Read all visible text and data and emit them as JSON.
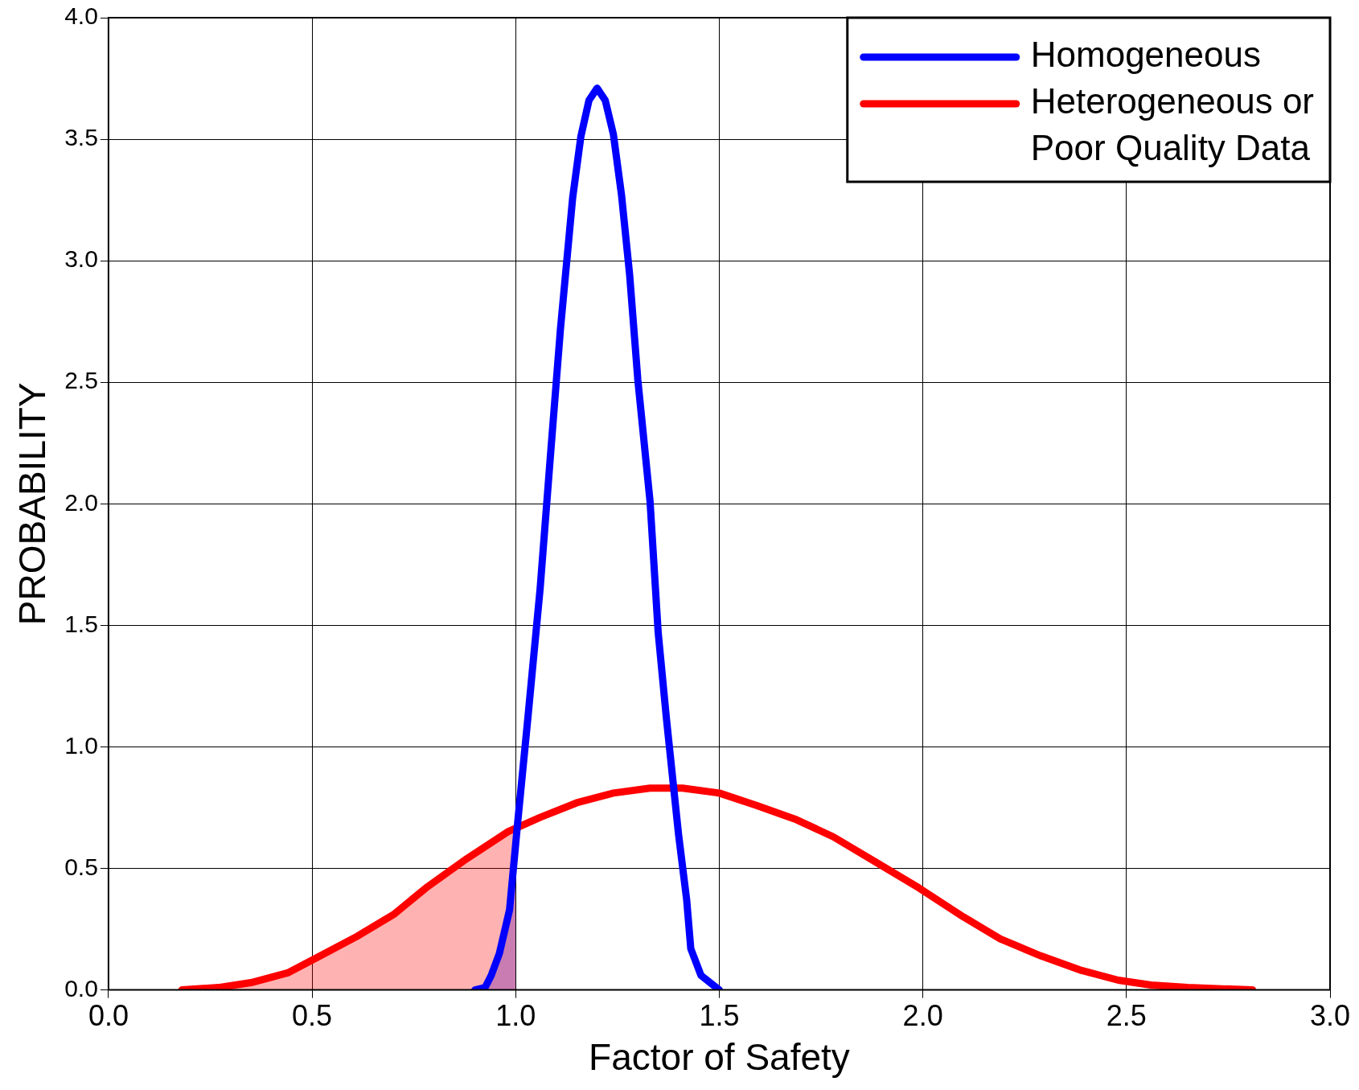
{
  "chart_data": {
    "type": "line",
    "xlabel": "Factor of Safety",
    "ylabel": "PROBABILITY",
    "xlim": [
      0,
      3
    ],
    "ylim": [
      0,
      4
    ],
    "xticks": [
      {
        "value": 0,
        "label": "0.0"
      },
      {
        "value": 0.5,
        "label": "0.5"
      },
      {
        "value": 1,
        "label": "1.0"
      },
      {
        "value": 1.5,
        "label": "1.5"
      },
      {
        "value": 2,
        "label": "2.0"
      },
      {
        "value": 2.5,
        "label": "2.5"
      },
      {
        "value": 3,
        "label": "3.0"
      }
    ],
    "yticks": [
      {
        "value": 0,
        "label": "0.0"
      },
      {
        "value": 0.5,
        "label": "0.5"
      },
      {
        "value": 1,
        "label": "1.0"
      },
      {
        "value": 1.5,
        "label": "1.5"
      },
      {
        "value": 2,
        "label": "2.0"
      },
      {
        "value": 2.5,
        "label": "2.5"
      },
      {
        "value": 3,
        "label": "3.0"
      },
      {
        "value": 3.5,
        "label": "3.5"
      },
      {
        "value": 4,
        "label": "4.0"
      }
    ],
    "grid": true,
    "legend": "top right",
    "marker": "none",
    "line_style": "solid",
    "series": [
      {
        "type": "area",
        "color": "#ff0000",
        "x": [
          0.18,
          0.27,
          0.35,
          0.44,
          0.52,
          0.61,
          0.7,
          0.78,
          0.88,
          0.98,
          1.0
        ],
        "values": [
          0,
          0.01,
          0.03,
          0.07,
          0.14,
          0.22,
          0.31,
          0.42,
          0.54,
          0.65,
          0.66
        ]
      },
      {
        "type": "area",
        "color": "#0000ff",
        "x": [
          0.9,
          0.925,
          0.94,
          0.96,
          0.985,
          1.0
        ],
        "values": [
          0,
          0.01,
          0.06,
          0.15,
          0.33,
          0.6
        ]
      },
      {
        "name": "Homogeneous",
        "color": "#0000ff",
        "x": [
          0.9,
          0.925,
          0.94,
          0.96,
          0.985,
          1.005,
          1.03,
          1.06,
          1.085,
          1.11,
          1.14,
          1.16,
          1.18,
          1.2,
          1.22,
          1.24,
          1.26,
          1.28,
          1.3,
          1.33,
          1.35,
          1.37,
          1.4,
          1.42,
          1.43,
          1.455,
          1.5
        ],
        "values": [
          0,
          0.01,
          0.06,
          0.15,
          0.33,
          0.69,
          1.12,
          1.65,
          2.19,
          2.72,
          3.26,
          3.51,
          3.66,
          3.71,
          3.66,
          3.52,
          3.27,
          2.94,
          2.51,
          2.01,
          1.47,
          1.12,
          0.64,
          0.37,
          0.17,
          0.06,
          0
        ]
      },
      {
        "name": "Heterogeneous or Poor Quality Data",
        "color": "#ff0000",
        "x": [
          0.18,
          0.27,
          0.35,
          0.44,
          0.52,
          0.61,
          0.7,
          0.78,
          0.88,
          0.98,
          1.06,
          1.15,
          1.24,
          1.33,
          1.41,
          1.5,
          1.59,
          1.69,
          1.78,
          1.88,
          1.99,
          2.1,
          2.19,
          2.29,
          2.39,
          2.48,
          2.56,
          2.65,
          2.81
        ],
        "values": [
          0,
          0.01,
          0.03,
          0.07,
          0.14,
          0.22,
          0.31,
          0.42,
          0.54,
          0.65,
          0.71,
          0.77,
          0.81,
          0.83,
          0.83,
          0.81,
          0.76,
          0.7,
          0.63,
          0.53,
          0.42,
          0.3,
          0.21,
          0.14,
          0.08,
          0.04,
          0.02,
          0.01,
          0
        ]
      }
    ]
  }
}
